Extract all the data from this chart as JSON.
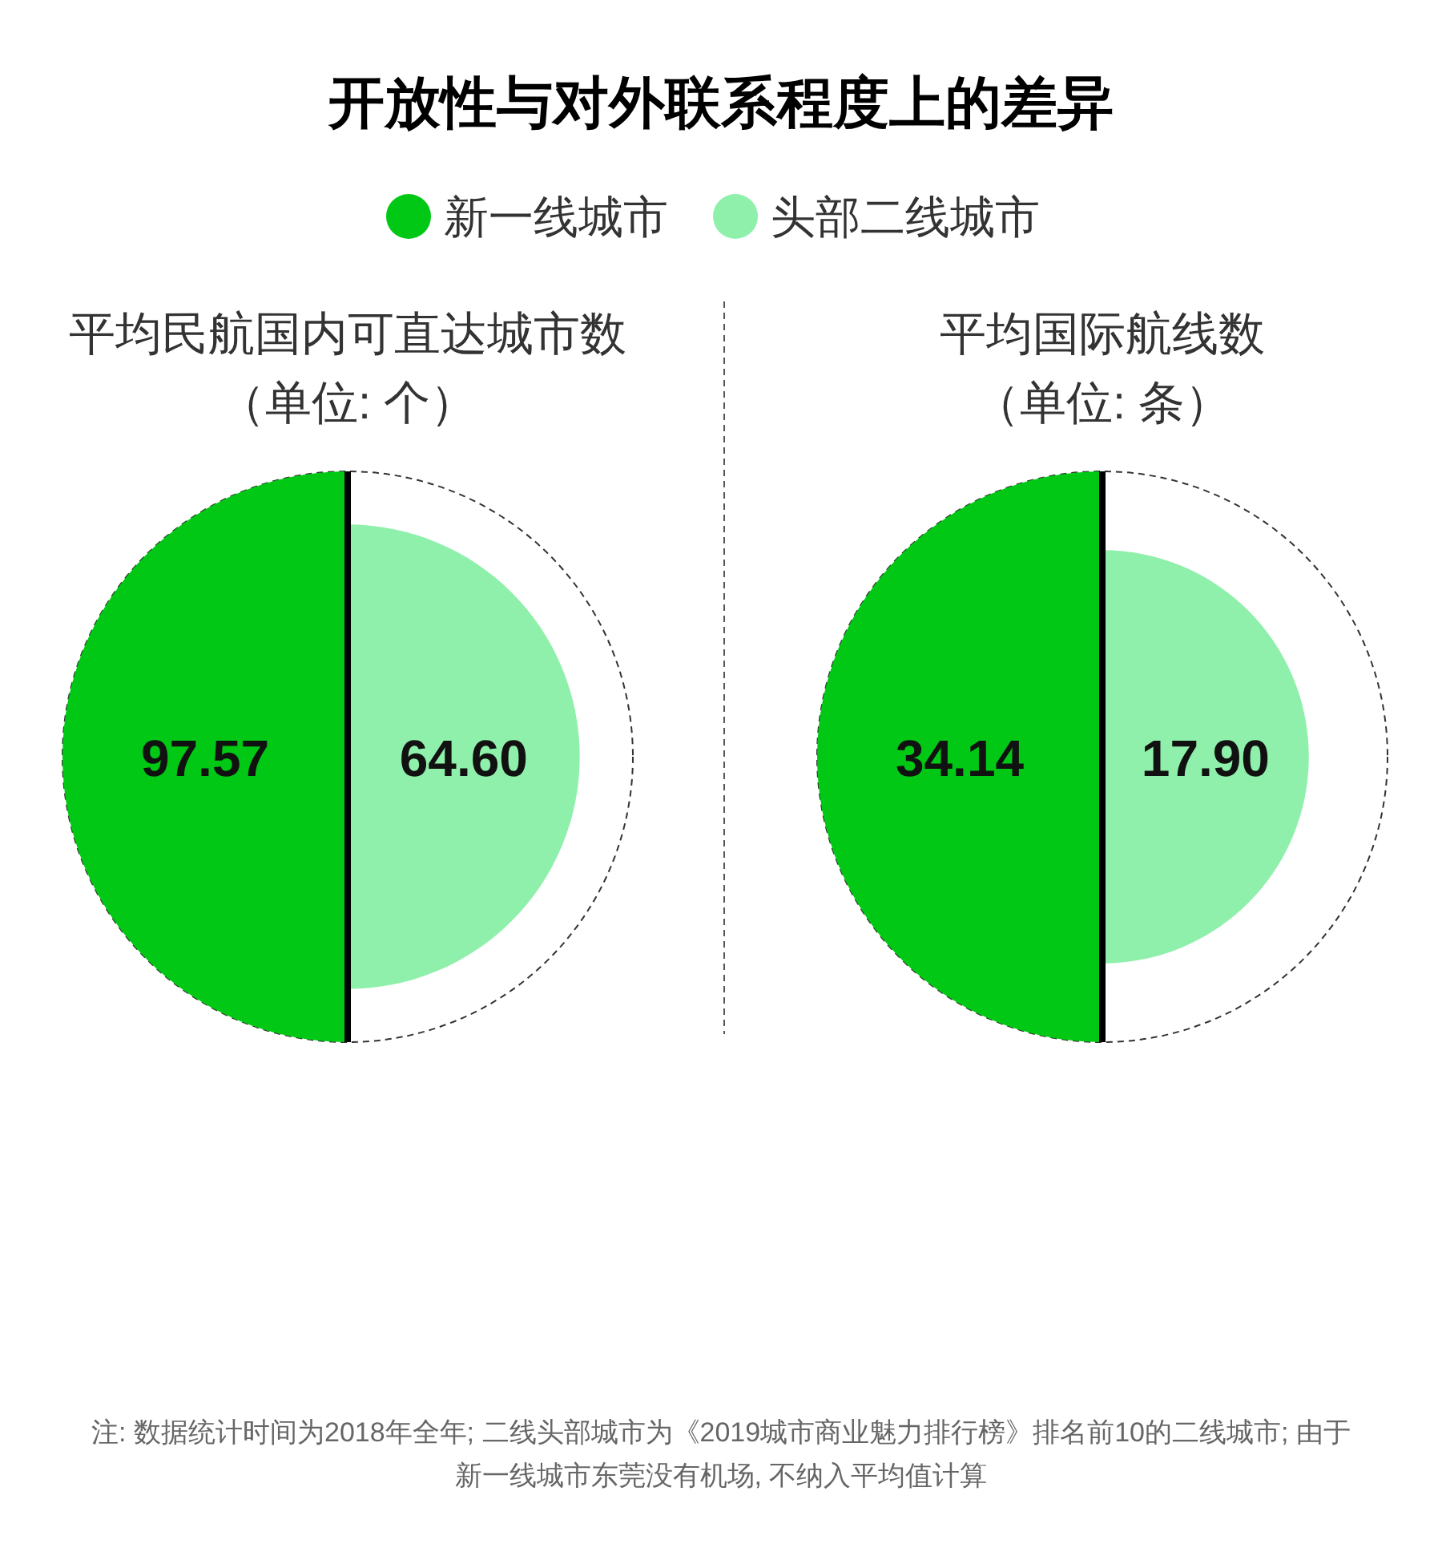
{
  "chart_data": {
    "type": "other",
    "title": "开放性与对外联系程度上的差异",
    "categories": [
      "平均民航国内可直达城市数（单位: 个）",
      "平均国际航线数（单位: 条）"
    ],
    "series": [
      {
        "name": "新一线城市",
        "color": "#00c814",
        "values": [
          97.57,
          34.14
        ],
        "value_labels": [
          "97.57",
          "34.14"
        ]
      },
      {
        "name": "头部二线城市",
        "color": "#8ff0ab",
        "values": [
          64.6,
          17.9
        ],
        "value_labels": [
          "64.60",
          "17.90"
        ]
      }
    ],
    "legend": "top",
    "annotations": [
      "注: 数据统计时间为2018年全年; 二线头部城市为《2019城市商业魅力排行榜》排名前10的二线城市; 由于新一线城市东莞没有机场, 不纳入平均值计算"
    ]
  }
}
